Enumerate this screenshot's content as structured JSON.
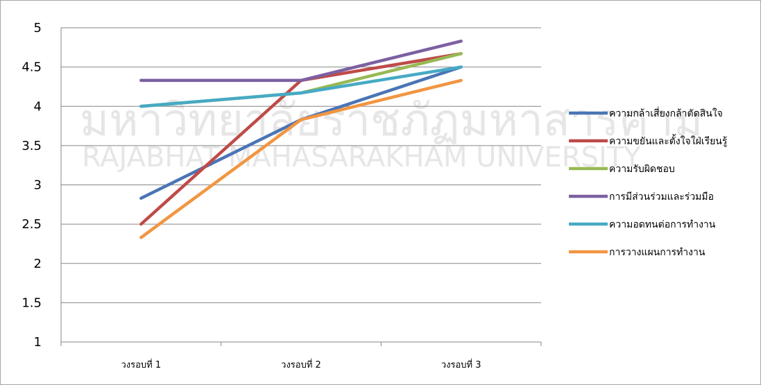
{
  "chart_data": {
    "type": "line",
    "title": "",
    "xlabel": "",
    "ylabel": "",
    "categories": [
      "วงรอบที่ 1",
      "วงรอบที่ 2",
      "วงรอบที่ 3"
    ],
    "ylim": [
      1,
      5
    ],
    "yticks": [
      "1",
      "1.5",
      "2",
      "2.5",
      "3",
      "3.5",
      "4",
      "4.5",
      "5"
    ],
    "grid": true,
    "legend": "right",
    "series": [
      {
        "name": "ความกล้าเสี่ยงกล้าตัดสินใจ",
        "values": [
          2.83,
          3.83,
          4.5
        ],
        "color": "#4a75b5"
      },
      {
        "name": "ความขยันและตั้งใจใฝ่เรียนรู้",
        "values": [
          2.5,
          4.33,
          4.67
        ],
        "color": "#be4b48"
      },
      {
        "name": "ความรับผิดชอบ",
        "values": [
          4.0,
          4.17,
          4.67
        ],
        "color": "#98b954"
      },
      {
        "name": "การมีส่วนร่วมและร่วมมือ",
        "values": [
          4.33,
          4.33,
          4.83
        ],
        "color": "#7d60a0"
      },
      {
        "name": "ความอดทนต่อการทำงาน",
        "values": [
          4.0,
          4.17,
          4.5
        ],
        "color": "#46aac5"
      },
      {
        "name": "การวางแผนการทำงาน",
        "values": [
          2.33,
          3.83,
          4.33
        ],
        "color": "#f29541"
      }
    ]
  },
  "watermark": {
    "thai": "มหาวิทยาลัยราชภัฏมหาสารคาม",
    "english": "RAJABHAT MAHASARAKHAM UNIVERSITY"
  }
}
